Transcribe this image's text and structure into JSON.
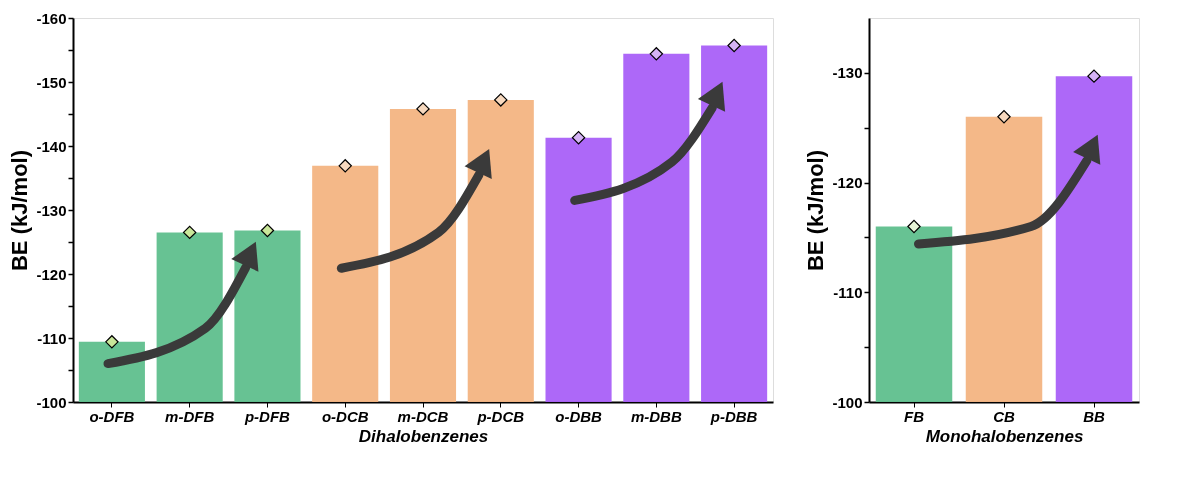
{
  "chart_data": [
    {
      "type": "bar",
      "xlabel": "Dihalobenzenes",
      "ylabel": "BE (kJ/mol)",
      "categories": [
        "o-DFB",
        "m-DFB",
        "p-DFB",
        "o-DCB",
        "m-DCB",
        "p-DCB",
        "o-DBB",
        "m-DBB",
        "p-DBB"
      ],
      "series": [
        {
          "type": "bar",
          "colors": [
            "#5fbf8d",
            "#5fbf8d",
            "#5fbf8d",
            "#f3b482",
            "#f3b482",
            "#f3b482",
            "#a960f8",
            "#a960f8",
            "#a960f8"
          ],
          "values": [
            -109.4,
            -126.5,
            -126.8,
            -136.9,
            -145.8,
            -147.2,
            -141.3,
            -154.4,
            -155.7
          ]
        },
        {
          "type": "scatter",
          "x": [
            "o-DFB",
            "m-DFB",
            "p-DFB",
            "o-DCB",
            "m-DCB",
            "p-DCB",
            "o-DBB",
            "m-DBB",
            "p-DBB"
          ],
          "colors": [
            "#c9e79a",
            "#c9e79a",
            "#c9e79a",
            "#f7d9bf",
            "#f7d9bf",
            "#f7d9bf",
            "#d5b3f5",
            "#d5b3f5",
            "#d5b3f5"
          ],
          "values": [
            -109.4,
            -126.5,
            -126.8,
            -136.9,
            -145.8,
            -147.2,
            -141.3,
            -154.4,
            -155.7
          ]
        }
      ],
      "marker": "diamond",
      "ylim": [
        -100,
        -160
      ],
      "yticks": [
        -100,
        {
          "value": -105,
          "label": null
        },
        -110,
        {
          "value": -115,
          "label": null
        },
        -120,
        {
          "value": -125,
          "label": null
        },
        -130,
        {
          "value": -135,
          "label": null
        },
        -140,
        {
          "value": -145,
          "label": null
        },
        -150,
        {
          "value": -155,
          "label": null
        },
        -160
      ],
      "grid": false
    },
    {
      "type": "bar",
      "xlabel": "Monohalobenzenes",
      "ylabel": "BE (kJ/mol)",
      "categories": [
        "FB",
        "CB",
        "BB"
      ],
      "series": [
        {
          "type": "bar",
          "colors": [
            "#5fbf8d",
            "#f3b482",
            "#a960f8"
          ],
          "values": [
            -116.0,
            -126.0,
            -129.7
          ]
        },
        {
          "type": "scatter",
          "x": [
            "FB",
            "CB",
            "BB"
          ],
          "colors": [
            "#e6f3d6",
            "#f7d9bf",
            "#d5b3f5"
          ],
          "values": [
            -116.0,
            -126.0,
            -129.7
          ]
        }
      ],
      "marker": "diamond",
      "ylim": [
        -100,
        -135
      ],
      "yticks": [
        -100,
        {
          "value": -105,
          "label": null
        },
        -110,
        {
          "value": -115,
          "label": null
        },
        -120,
        {
          "value": -125,
          "label": null
        },
        -130
      ],
      "grid": false
    }
  ]
}
